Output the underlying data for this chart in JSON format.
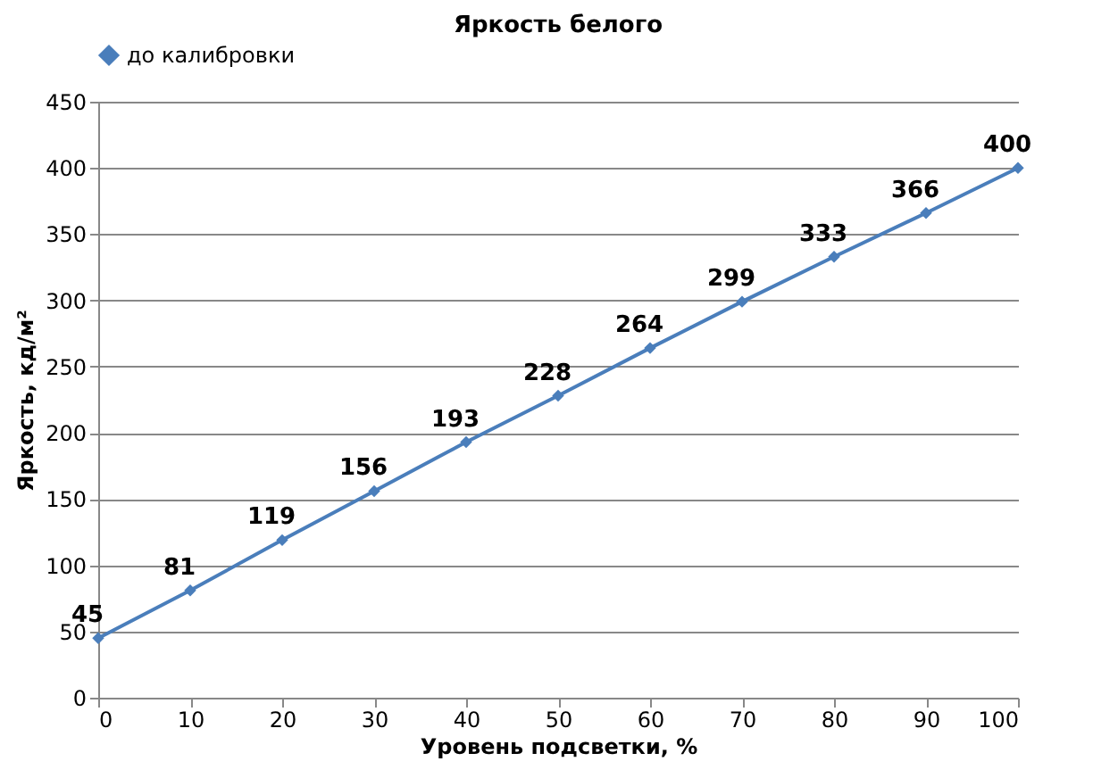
{
  "chart_data": {
    "type": "line",
    "title": "Яркость белого",
    "xlabel": "Уровень подсветки, %",
    "ylabel": "Яркость, кд/м²",
    "x": [
      0,
      10,
      20,
      30,
      40,
      50,
      60,
      70,
      80,
      90,
      100
    ],
    "series": [
      {
        "name": "до калибровки",
        "color": "#4a7ebb",
        "values": [
          45,
          81,
          119,
          156,
          193,
          228,
          264,
          299,
          333,
          366,
          400
        ]
      }
    ],
    "xlim": [
      0,
      100
    ],
    "xticks": [
      0,
      10,
      20,
      30,
      40,
      50,
      60,
      70,
      80,
      90,
      100
    ],
    "ylim": [
      0,
      450
    ],
    "yticks": [
      0,
      50,
      100,
      150,
      200,
      250,
      300,
      350,
      400,
      450
    ],
    "grid": "y",
    "legend": "top",
    "marker": "diamond",
    "line_style": "solid",
    "data_labels": true
  }
}
